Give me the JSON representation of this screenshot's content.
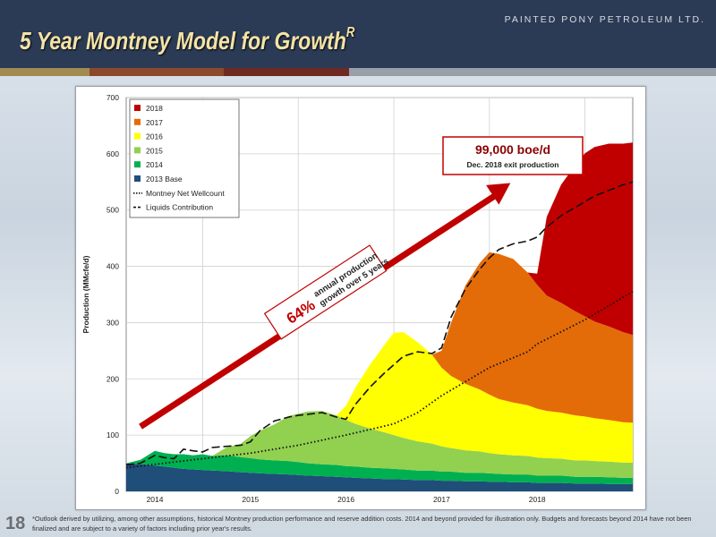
{
  "header": {
    "brand": "PAINTED PONY PETROLEUM LTD.",
    "title": "5 Year Montney Model for Growth",
    "title_superscript": "R"
  },
  "page_number": "18",
  "footnote": "*Outlook derived by utilizing, among other assumptions, historical Montney production performance and reserve addition costs. 2014 and beyond provided for illustration only. Budgets and forecasts beyond 2014 have not been finalized and are subject to a variety of factors including prior year's results.",
  "colors": {
    "2018": "#c00000",
    "2017": "#e36c09",
    "2016": "#ffff00",
    "2015": "#92d050",
    "2014": "#00b050",
    "2013 Base": "#1f4e79",
    "arrow": "#c00000"
  },
  "annotations": {
    "exit_value": "99,000 boe/d",
    "exit_label": "Dec. 2018 exit production",
    "growth_pct": "64%",
    "growth_line1": "annual production",
    "growth_line2": "growth over 5 years"
  },
  "chart_data": {
    "type": "area",
    "ylabel": "Production (MMcfe/d)",
    "xlabel": "",
    "ylim": [
      0,
      700
    ],
    "yticks": [
      0,
      100,
      200,
      300,
      400,
      500,
      600,
      700
    ],
    "xlim": [
      2013.7,
      2019.0
    ],
    "xtick_labels": [
      "2014",
      "2015",
      "2016",
      "2017",
      "2018"
    ],
    "xtick_positions": [
      2014.0,
      2015.0,
      2016.0,
      2017.0,
      2018.0
    ],
    "x": [
      2013.7,
      2013.85,
      2014.0,
      2014.1,
      2014.2,
      2014.3,
      2014.4,
      2014.5,
      2014.6,
      2014.75,
      2014.9,
      2015.0,
      2015.1,
      2015.25,
      2015.4,
      2015.5,
      2015.6,
      2015.75,
      2015.9,
      2016.0,
      2016.1,
      2016.25,
      2016.4,
      2016.5,
      2016.6,
      2016.75,
      2016.9,
      2017.0,
      2017.1,
      2017.25,
      2017.4,
      2017.5,
      2017.6,
      2017.75,
      2017.9,
      2018.0,
      2018.1,
      2018.25,
      2018.4,
      2018.5,
      2018.6,
      2018.75,
      2018.9,
      2019.0
    ],
    "series": [
      {
        "name": "2013 Base",
        "values": [
          50,
          48,
          46,
          44,
          42,
          40,
          39,
          38,
          37,
          36,
          34,
          33,
          32,
          31,
          30,
          29,
          28,
          27,
          26,
          25,
          24,
          23,
          22,
          22,
          21,
          20,
          20,
          19,
          19,
          18,
          18,
          17,
          17,
          16,
          16,
          15,
          15,
          15,
          14,
          14,
          14,
          13,
          13,
          13
        ]
      },
      {
        "name": "2014",
        "values": [
          0,
          8,
          26,
          24,
          24,
          26,
          25,
          28,
          26,
          28,
          27,
          26,
          25,
          24,
          24,
          23,
          22,
          21,
          21,
          20,
          20,
          19,
          19,
          18,
          18,
          17,
          17,
          16,
          16,
          15,
          15,
          15,
          14,
          14,
          14,
          13,
          13,
          13,
          12,
          12,
          12,
          12,
          11,
          11
        ]
      },
      {
        "name": "2015",
        "values": [
          0,
          0,
          0,
          0,
          0,
          0,
          0,
          0,
          0,
          14,
          24,
          39,
          51,
          64,
          80,
          86,
          92,
          95,
          88,
          82,
          76,
          70,
          64,
          60,
          56,
          52,
          48,
          45,
          42,
          40,
          38,
          36,
          35,
          34,
          33,
          32,
          31,
          30,
          29,
          29,
          28,
          28,
          27,
          27
        ]
      },
      {
        "name": "2016",
        "values": [
          0,
          0,
          0,
          0,
          0,
          0,
          0,
          0,
          0,
          0,
          0,
          0,
          0,
          0,
          0,
          0,
          0,
          0,
          0,
          25,
          65,
          113,
          155,
          182,
          188,
          176,
          158,
          140,
          128,
          118,
          110,
          104,
          98,
          94,
          90,
          87,
          84,
          82,
          80,
          78,
          76,
          74,
          72,
          71
        ]
      },
      {
        "name": "2017",
        "values": [
          0,
          0,
          0,
          0,
          0,
          0,
          0,
          0,
          0,
          0,
          0,
          0,
          0,
          0,
          0,
          0,
          0,
          0,
          0,
          0,
          0,
          0,
          0,
          0,
          0,
          0,
          0,
          30,
          95,
          175,
          225,
          253,
          258,
          255,
          236,
          220,
          205,
          195,
          185,
          178,
          172,
          166,
          160,
          156
        ]
      },
      {
        "name": "2018",
        "values": [
          0,
          0,
          0,
          0,
          0,
          0,
          0,
          0,
          0,
          0,
          0,
          0,
          0,
          0,
          0,
          0,
          0,
          0,
          0,
          0,
          0,
          0,
          0,
          0,
          0,
          0,
          0,
          0,
          0,
          0,
          0,
          0,
          0,
          0,
          0,
          20,
          140,
          210,
          260,
          290,
          310,
          325,
          335,
          342
        ]
      }
    ],
    "lines": [
      {
        "name": "Montney Net Wellcount",
        "style": "dotted",
        "x": [
          2013.7,
          2014.0,
          2014.5,
          2015.0,
          2015.5,
          2016.0,
          2016.5,
          2016.75,
          2017.0,
          2017.5,
          2017.9,
          2018.0,
          2018.5,
          2019.0
        ],
        "y": [
          42,
          48,
          58,
          68,
          82,
          100,
          120,
          140,
          170,
          220,
          248,
          262,
          305,
          355
        ]
      },
      {
        "name": "Liquids Contribution",
        "style": "dashed",
        "x": [
          2013.7,
          2013.85,
          2014.0,
          2014.1,
          2014.2,
          2014.3,
          2014.4,
          2014.5,
          2014.6,
          2014.75,
          2014.9,
          2015.0,
          2015.1,
          2015.25,
          2015.4,
          2015.5,
          2015.6,
          2015.75,
          2015.9,
          2016.0,
          2016.1,
          2016.25,
          2016.4,
          2016.5,
          2016.6,
          2016.75,
          2016.9,
          2017.0,
          2017.1,
          2017.25,
          2017.4,
          2017.5,
          2017.6,
          2017.75,
          2017.9,
          2018.0,
          2018.1,
          2018.25,
          2018.4,
          2018.5,
          2018.6,
          2018.75,
          2018.9,
          2019.0
        ],
        "y": [
          47,
          50,
          64,
          60,
          58,
          75,
          72,
          70,
          78,
          80,
          82,
          88,
          108,
          125,
          132,
          135,
          137,
          140,
          132,
          128,
          155,
          185,
          210,
          225,
          240,
          248,
          245,
          255,
          310,
          360,
          395,
          415,
          430,
          440,
          445,
          452,
          470,
          490,
          505,
          515,
          525,
          535,
          545,
          550
        ]
      }
    ],
    "legend": [
      "2018",
      "2017",
      "2016",
      "2015",
      "2014",
      "2013 Base",
      "Montney Net Wellcount",
      "Liquids Contribution"
    ],
    "legend_position": "top-left",
    "grid": true
  }
}
